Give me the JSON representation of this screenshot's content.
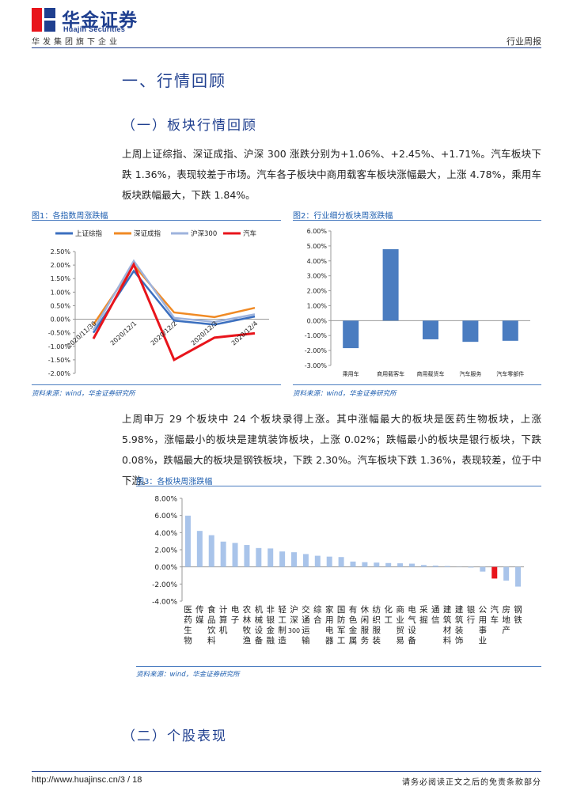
{
  "header": {
    "brand_cn": "华金证券",
    "brand_en": "Huajin Securities",
    "tagline": "华发集团旗下企业",
    "report_type": "行业周报"
  },
  "section1": {
    "title": "一、行情回顾"
  },
  "subsection1": {
    "title": "（一）板块行情回顾"
  },
  "para1": "上周上证综指、深证成指、沪深 300 涨跌分别为+1.06%、+2.45%、+1.71%。汽车板块下跌 1.36%，表现较差于市场。汽车各子板块中商用载客车板块涨幅最大，上涨 4.78%，乘用车板块跌幅最大，下跌 1.84%。",
  "fig1": {
    "title": "图1：各指数周涨跌幅",
    "source": "资料来源：wind，华金证券研究所"
  },
  "fig2": {
    "title": "图2：行业细分板块周涨跌幅",
    "source": "资料来源：wind，华金证券研究所"
  },
  "para2": "上周申万 29 个板块中 24 个板块录得上涨。其中涨幅最大的板块是医药生物板块，上涨 5.98%，涨幅最小的板块是建筑装饰板块，上涨 0.02%；跌幅最小的板块是银行板块，下跌 0.08%，跌幅最大的板块是钢铁板块，下跌 2.30%。汽车板块下跌 1.36%，表现较差，位于中下游。",
  "fig3": {
    "title": "图3：各板块周涨跌幅",
    "source": "资料来源：wind，华金证券研究所"
  },
  "subsection2": {
    "title": "（二）个股表现"
  },
  "footer": {
    "url": "http://www.huajinsc.cn/3 / 18",
    "disclaimer": "请务必阅读正文之后的免责条款部分"
  },
  "chart_data": [
    {
      "type": "line",
      "x": [
        "2020/11/30",
        "2020/12/1",
        "2020/12/2",
        "2020/12/3",
        "2020/12/4"
      ],
      "ylim": [
        -2.0,
        2.5
      ],
      "yticks": [
        "2.50%",
        "2.00%",
        "1.50%",
        "1.00%",
        "0.50%",
        "0.00%",
        "-0.50%",
        "-1.00%",
        "-1.50%",
        "-2.00%"
      ],
      "grid": false,
      "legend": "top",
      "series": [
        {
          "name": "上证综指",
          "color": "#3b6fbf",
          "values": [
            -0.5,
            1.78,
            -0.05,
            -0.2,
            0.1
          ]
        },
        {
          "name": "深证成指",
          "color": "#f08a24",
          "values": [
            -0.2,
            2.0,
            0.25,
            0.08,
            0.42
          ]
        },
        {
          "name": "沪深300",
          "color": "#9eb3dd",
          "values": [
            -0.4,
            2.15,
            0.05,
            -0.1,
            0.18
          ]
        },
        {
          "name": "汽车",
          "color": "#e8141b",
          "values": [
            -0.72,
            2.02,
            -1.5,
            -0.68,
            -0.52
          ]
        }
      ]
    },
    {
      "type": "bar",
      "categories": [
        "乘用车",
        "商用载客车",
        "商用载货车",
        "汽车服务",
        "汽车零部件"
      ],
      "values": [
        -1.84,
        4.78,
        -1.25,
        -1.42,
        -1.35
      ],
      "ylim": [
        -3.0,
        6.0
      ],
      "yticks": [
        "6.00%",
        "5.00%",
        "4.00%",
        "3.00%",
        "2.00%",
        "1.00%",
        "0.00%",
        "-1.00%",
        "-2.00%",
        "-3.00%"
      ],
      "color": "#4a7cc0",
      "grid": false
    },
    {
      "type": "bar",
      "categories": [
        "医药生物",
        "传媒",
        "食品饮料",
        "计算机",
        "电子",
        "农林牧渔",
        "机械设备",
        "非银金融",
        "轻工制造",
        "沪深300",
        "交通运输",
        "综合",
        "家用电器",
        "国防军工",
        "有色金属",
        "休闲服务",
        "纺织服装",
        "化工",
        "商业贸易",
        "电气设备",
        "采掘",
        "通信",
        "建筑材料",
        "建筑装饰",
        "银行",
        "公用事业",
        "汽车",
        "房地产",
        "钢铁"
      ],
      "values": [
        5.98,
        4.2,
        3.7,
        2.95,
        2.8,
        2.55,
        2.2,
        2.15,
        1.8,
        1.71,
        1.5,
        1.3,
        1.2,
        1.15,
        0.62,
        0.55,
        0.5,
        0.45,
        0.42,
        0.38,
        0.22,
        0.15,
        0.1,
        0.02,
        -0.08,
        -0.55,
        -1.36,
        -1.6,
        -2.3
      ],
      "highlight": "汽车",
      "colors": {
        "bar": "#a9c4ea",
        "highlight": "#e8141b"
      },
      "ylim": [
        -4.0,
        8.0
      ],
      "yticks": [
        "8.00%",
        "6.00%",
        "4.00%",
        "2.00%",
        "0.00%",
        "-2.00%",
        "-4.00%"
      ],
      "grid": false
    }
  ]
}
